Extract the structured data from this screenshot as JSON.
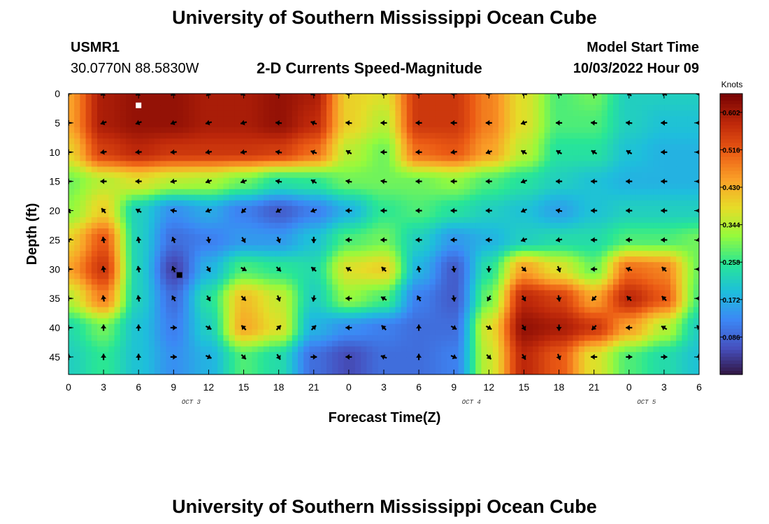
{
  "header": {
    "title": "University of Southern Mississippi Ocean Cube",
    "station": "USMR1",
    "coords": "30.0770N  88.5830W",
    "subtitle": "2-D Currents Speed-Magnitude",
    "model_label": "Model Start Time",
    "model_time": "10/03/2022 Hour 09",
    "footer_title": "University of Southern Mississippi Ocean Cube"
  },
  "chart_data": {
    "type": "heatmap",
    "title": "2-D Currents Speed-Magnitude",
    "xlabel": "Forecast Time(Z)",
    "ylabel": "Depth (ft)",
    "x_ticks": [
      "0",
      "3",
      "6",
      "9",
      "12",
      "15",
      "18",
      "21",
      "0",
      "3",
      "6",
      "9",
      "12",
      "15",
      "18",
      "21",
      "0",
      "3",
      "6"
    ],
    "date_labels": [
      {
        "text": "OCT 3",
        "tick_index": 3.5
      },
      {
        "text": "OCT 4",
        "tick_index": 11.5
      },
      {
        "text": "OCT 5",
        "tick_index": 16.5
      }
    ],
    "y_ticks": [
      "0",
      "5",
      "10",
      "15",
      "20",
      "25",
      "30",
      "35",
      "40",
      "45"
    ],
    "xlim_hours": [
      0,
      54
    ],
    "ylim_ft": [
      0,
      48
    ],
    "colorbar": {
      "label": "Knots",
      "ticks": [
        "0.602",
        "0.516",
        "0.430",
        "0.344",
        "0.258",
        "0.172",
        "0.086"
      ],
      "range": [
        0.0,
        0.645
      ]
    },
    "speed_field_knots": {
      "x_hours": [
        0,
        3,
        6,
        9,
        12,
        15,
        18,
        21,
        24,
        27,
        30,
        33,
        36,
        39,
        42,
        45,
        48,
        51,
        54
      ],
      "depths_ft": [
        0,
        5,
        10,
        15,
        20,
        25,
        30,
        35,
        40,
        45
      ],
      "values": [
        [
          0.45,
          0.6,
          0.62,
          0.62,
          0.6,
          0.6,
          0.62,
          0.6,
          0.4,
          0.38,
          0.56,
          0.56,
          0.48,
          0.38,
          0.28,
          0.3,
          0.22,
          0.22,
          0.22
        ],
        [
          0.45,
          0.6,
          0.62,
          0.62,
          0.6,
          0.6,
          0.62,
          0.58,
          0.4,
          0.35,
          0.56,
          0.56,
          0.48,
          0.38,
          0.28,
          0.28,
          0.22,
          0.2,
          0.2
        ],
        [
          0.4,
          0.55,
          0.58,
          0.56,
          0.56,
          0.56,
          0.55,
          0.5,
          0.35,
          0.3,
          0.5,
          0.52,
          0.45,
          0.35,
          0.25,
          0.25,
          0.2,
          0.18,
          0.18
        ],
        [
          0.3,
          0.35,
          0.38,
          0.35,
          0.34,
          0.3,
          0.25,
          0.26,
          0.3,
          0.3,
          0.3,
          0.32,
          0.28,
          0.25,
          0.22,
          0.2,
          0.18,
          0.18,
          0.18
        ],
        [
          0.32,
          0.4,
          0.22,
          0.14,
          0.17,
          0.12,
          0.08,
          0.12,
          0.18,
          0.26,
          0.28,
          0.25,
          0.22,
          0.2,
          0.16,
          0.2,
          0.22,
          0.22,
          0.22
        ],
        [
          0.4,
          0.52,
          0.22,
          0.1,
          0.12,
          0.15,
          0.15,
          0.2,
          0.28,
          0.3,
          0.22,
          0.15,
          0.18,
          0.22,
          0.24,
          0.24,
          0.28,
          0.28,
          0.3
        ],
        [
          0.45,
          0.56,
          0.22,
          0.05,
          0.18,
          0.28,
          0.26,
          0.24,
          0.38,
          0.4,
          0.18,
          0.08,
          0.25,
          0.45,
          0.38,
          0.3,
          0.5,
          0.48,
          0.3
        ],
        [
          0.35,
          0.48,
          0.22,
          0.1,
          0.25,
          0.42,
          0.36,
          0.22,
          0.32,
          0.28,
          0.12,
          0.08,
          0.3,
          0.58,
          0.55,
          0.45,
          0.58,
          0.52,
          0.28
        ],
        [
          0.24,
          0.3,
          0.2,
          0.12,
          0.22,
          0.44,
          0.38,
          0.18,
          0.14,
          0.12,
          0.1,
          0.1,
          0.38,
          0.62,
          0.6,
          0.56,
          0.45,
          0.35,
          0.22
        ],
        [
          0.22,
          0.26,
          0.2,
          0.14,
          0.18,
          0.28,
          0.24,
          0.1,
          0.06,
          0.1,
          0.1,
          0.12,
          0.36,
          0.58,
          0.52,
          0.38,
          0.28,
          0.24,
          0.2
        ]
      ]
    },
    "current_vectors": {
      "description_angle": "degrees, 0=east, counterclockwise positive, screen direction of arrow",
      "depths_ft": [
        0,
        5,
        10,
        15,
        20,
        25,
        30,
        35,
        40,
        45
      ],
      "x_hours": [
        0,
        3,
        6,
        9,
        12,
        15,
        18,
        21,
        24,
        27,
        30,
        33,
        36,
        39,
        42,
        45,
        48,
        51,
        54
      ],
      "angles": [
        [
          180,
          210,
          210,
          215,
          225,
          205,
          195,
          200,
          180,
          170,
          180,
          180,
          185,
          160,
          150,
          150,
          135,
          150,
          180
        ],
        [
          180,
          200,
          200,
          200,
          195,
          195,
          175,
          160,
          175,
          180,
          180,
          180,
          180,
          200,
          180,
          175,
          175,
          180,
          180
        ],
        [
          180,
          190,
          185,
          185,
          190,
          190,
          170,
          160,
          150,
          180,
          180,
          190,
          200,
          150,
          150,
          150,
          150,
          180,
          180
        ],
        [
          180,
          180,
          180,
          190,
          200,
          200,
          170,
          150,
          170,
          170,
          180,
          180,
          180,
          200,
          180,
          180,
          180,
          180,
          180
        ],
        [
          130,
          130,
          150,
          170,
          200,
          225,
          210,
          200,
          180,
          180,
          180,
          180,
          180,
          205,
          170,
          180,
          180,
          180,
          180
        ],
        [
          200,
          100,
          100,
          110,
          280,
          300,
          290,
          270,
          180,
          180,
          180,
          180,
          180,
          200,
          190,
          180,
          180,
          180,
          190
        ],
        [
          180,
          100,
          100,
          110,
          300,
          330,
          315,
          140,
          150,
          135,
          100,
          280,
          270,
          315,
          290,
          180,
          160,
          135,
          180
        ],
        [
          180,
          100,
          100,
          120,
          300,
          315,
          290,
          260,
          180,
          150,
          120,
          280,
          240,
          300,
          280,
          225,
          135,
          135,
          180
        ],
        [
          180,
          90,
          90,
          0,
          330,
          135,
          45,
          45,
          180,
          135,
          90,
          330,
          330,
          300,
          270,
          225,
          180,
          150,
          135
        ],
        [
          90,
          90,
          90,
          0,
          335,
          315,
          300,
          0,
          180,
          160,
          90,
          335,
          315,
          300,
          290,
          180,
          0,
          0,
          90
        ]
      ]
    },
    "markers": [
      {
        "hour": 6,
        "depth": 2,
        "color": "#ffffff"
      },
      {
        "hour": 9.5,
        "depth": 31,
        "color": "#000000"
      }
    ]
  }
}
